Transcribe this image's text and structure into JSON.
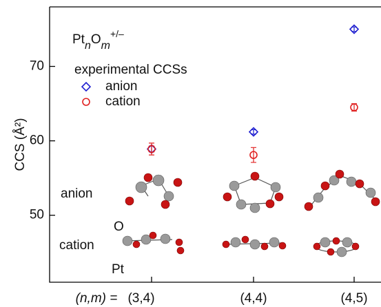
{
  "chart_data": {
    "type": "scatter",
    "title_parts": [
      "Pt",
      "n",
      "O",
      "m",
      "+/–"
    ],
    "y_label": "CCS (Å²)",
    "x_prefix": "(n,m) =",
    "legend_title": "experimental CCSs",
    "categories": [
      "(3,4)",
      "(4,4)",
      "(4,5)"
    ],
    "series": [
      {
        "name": "anion",
        "color": "#1f1fd0",
        "marker": "diamond",
        "values": [
          58.9,
          61.2,
          75.0
        ],
        "errors": [
          0.4,
          0.3,
          0.3
        ]
      },
      {
        "name": "cation",
        "color": "#e02020",
        "marker": "circle",
        "values": [
          58.9,
          58.1,
          64.5
        ],
        "errors": [
          0.8,
          1.0,
          0.5
        ]
      }
    ],
    "ylim": [
      41,
      78
    ],
    "yticks": [
      50,
      60,
      70
    ],
    "annotations": [
      "anion",
      "cation",
      "O",
      "Pt"
    ]
  }
}
